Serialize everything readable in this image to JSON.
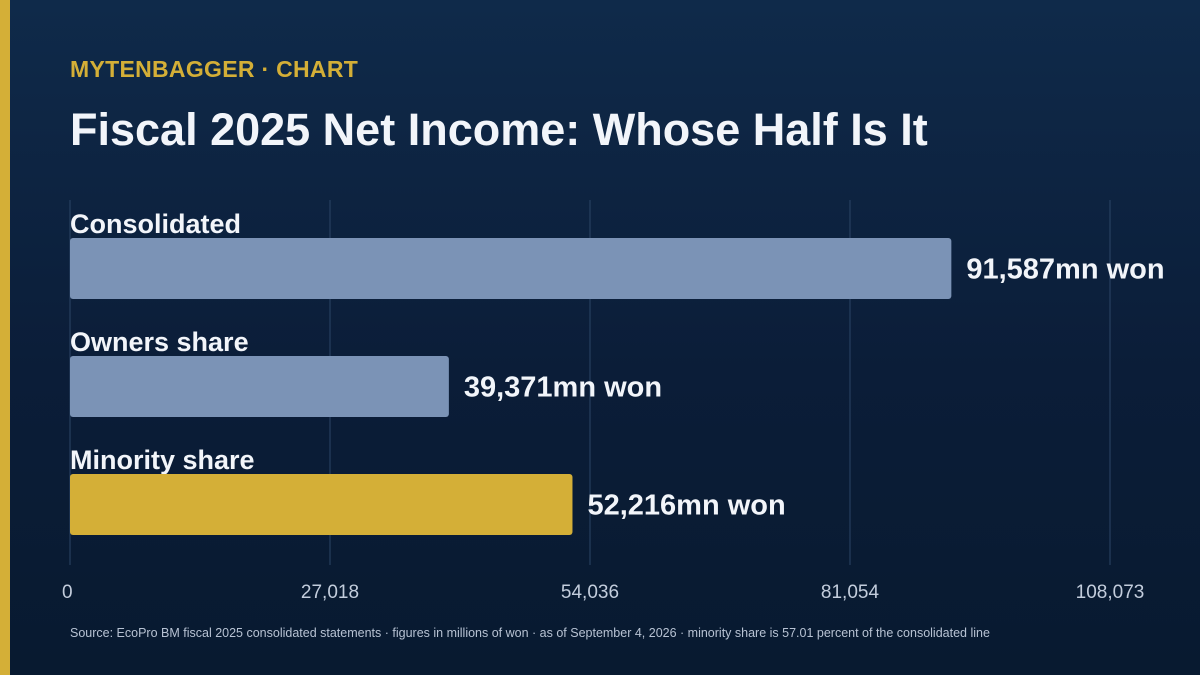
{
  "header": {
    "kicker": "MYTENBAGGER · CHART",
    "title": "Fiscal 2025 Net Income: Whose Half Is It"
  },
  "colors": {
    "accent": "#d4af37",
    "bar_default": "#7b93b6",
    "bar_highlight": "#d4af37",
    "gridline": "#2c4566",
    "label": "#f2f5fa",
    "tick": "#c3cddc"
  },
  "chart_data": {
    "type": "bar",
    "orientation": "horizontal",
    "categories": [
      "Consolidated",
      "Owners share",
      "Minority share"
    ],
    "values": [
      91587,
      39371,
      52216
    ],
    "value_labels": [
      "91,587mn won",
      "39,371mn won",
      "52,216mn won"
    ],
    "highlight_index": 2,
    "xlim": [
      0,
      108073
    ],
    "xticks": [
      0,
      27018,
      54036,
      81054,
      108073
    ],
    "xtick_labels": [
      "0",
      "27,018",
      "54,036",
      "81,054",
      "108,073"
    ],
    "grid": true
  },
  "footer": {
    "source": "Source: EcoPro BM fiscal 2025 consolidated statements · figures in millions of won · as of September 4, 2026 · minority share is 57.01 percent of the consolidated line"
  }
}
